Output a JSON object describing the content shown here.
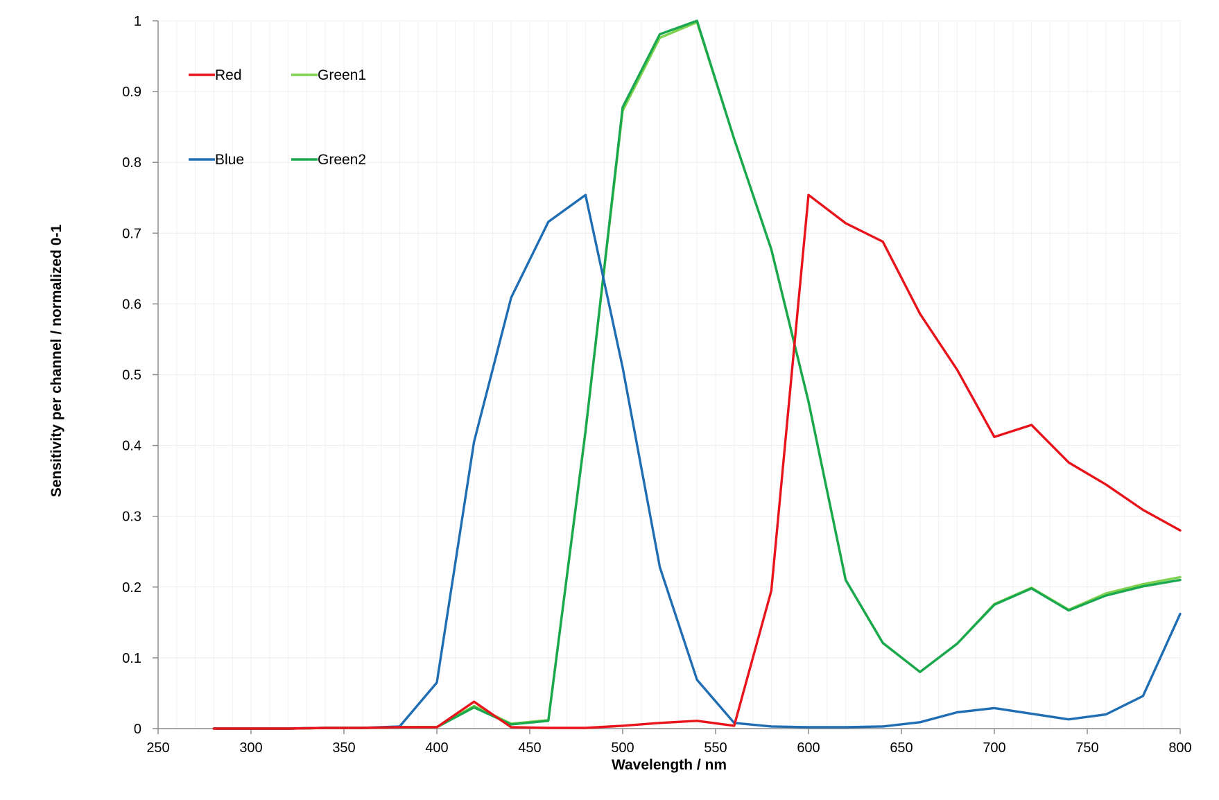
{
  "chart_data": {
    "type": "line",
    "title": "",
    "xlabel": "Wavelength / nm",
    "ylabel": "Sensitivity per channel / normalized 0-1",
    "xlim": [
      250,
      800
    ],
    "ylim": [
      0,
      1
    ],
    "x_ticks": [
      250,
      300,
      350,
      400,
      450,
      500,
      550,
      600,
      650,
      700,
      750,
      800
    ],
    "x_tick_labels": [
      "250",
      "300",
      "350",
      "400",
      "450",
      "500",
      "550",
      "600",
      "650",
      "700",
      "750",
      "800"
    ],
    "y_ticks": [
      0,
      0.1,
      0.2,
      0.3,
      0.4,
      0.5,
      0.6,
      0.7,
      0.8,
      0.9,
      1
    ],
    "y_tick_labels": [
      "0",
      "0.1",
      "0.2",
      "0.3",
      "0.4",
      "0.5",
      "0.6",
      "0.7",
      "0.8",
      "0.9",
      "1"
    ],
    "grid": true,
    "legend_position": "top-left",
    "x": [
      280,
      300,
      320,
      340,
      360,
      380,
      400,
      420,
      440,
      460,
      480,
      500,
      520,
      540,
      560,
      580,
      600,
      620,
      640,
      660,
      680,
      700,
      720,
      740,
      760,
      780,
      800
    ],
    "series": [
      {
        "name": "Red",
        "color": "#e8141b",
        "values": [
          0.0,
          0.0,
          0.0,
          0.001,
          0.001,
          0.002,
          0.002,
          0.038,
          0.002,
          0.001,
          0.001,
          0.004,
          0.008,
          0.011,
          0.004,
          0.195,
          0.754,
          0.714,
          0.688,
          0.586,
          0.507,
          0.412,
          0.429,
          0.376,
          0.345,
          0.309,
          0.28
        ]
      },
      {
        "name": "Green1",
        "color": "#7ed24f",
        "values": [
          0.0,
          0.0,
          0.0,
          0.001,
          0.001,
          0.002,
          0.002,
          0.032,
          0.007,
          0.012,
          0.42,
          0.873,
          0.976,
          0.998,
          0.833,
          0.677,
          0.462,
          0.21,
          0.121,
          0.08,
          0.12,
          0.176,
          0.199,
          0.168,
          0.191,
          0.204,
          0.214
        ]
      },
      {
        "name": "Blue",
        "color": "#1f6eb4",
        "values": [
          0.0,
          0.0,
          0.0,
          0.001,
          0.001,
          0.003,
          0.065,
          0.405,
          0.609,
          0.716,
          0.754,
          0.51,
          0.228,
          0.069,
          0.008,
          0.003,
          0.002,
          0.002,
          0.003,
          0.009,
          0.023,
          0.029,
          0.021,
          0.013,
          0.02,
          0.046,
          0.162
        ]
      },
      {
        "name": "Green2",
        "color": "#1aa84e",
        "values": [
          0.0,
          0.0,
          0.0,
          0.001,
          0.001,
          0.002,
          0.002,
          0.03,
          0.006,
          0.011,
          0.42,
          0.878,
          0.981,
          1.0,
          0.833,
          0.677,
          0.462,
          0.21,
          0.121,
          0.08,
          0.12,
          0.175,
          0.198,
          0.167,
          0.188,
          0.201,
          0.21
        ]
      }
    ]
  }
}
